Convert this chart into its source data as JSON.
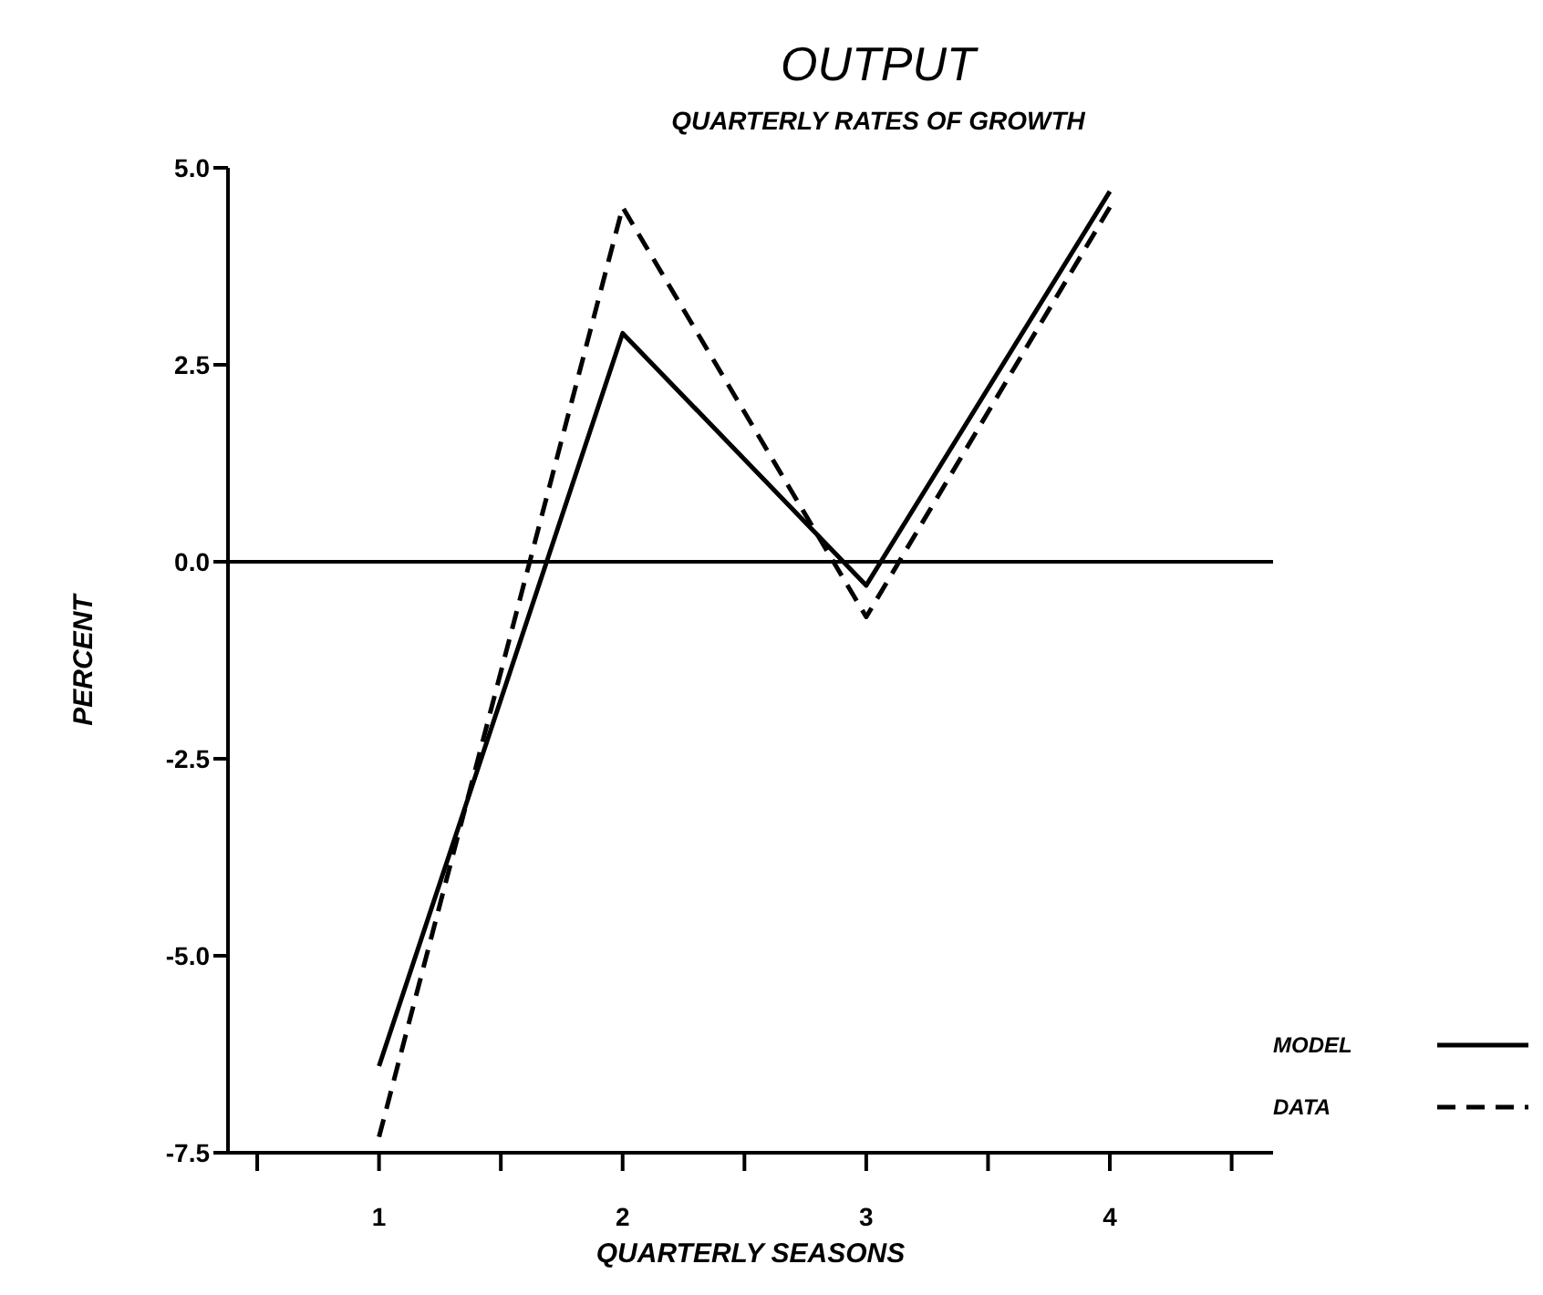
{
  "chart_data": {
    "type": "line",
    "title": "OUTPUT",
    "subtitle": "QUARTERLY RATES OF GROWTH",
    "xlabel": "QUARTERLY SEASONS",
    "ylabel": "PERCENT",
    "x": [
      1,
      2,
      3,
      4
    ],
    "series": [
      {
        "name": "MODEL",
        "color": "#000000",
        "line_style": "solid",
        "values": [
          -6.4,
          2.9,
          -0.3,
          4.7
        ]
      },
      {
        "name": "DATA",
        "color": "#000000",
        "line_style": "dashed",
        "values": [
          -7.3,
          4.5,
          -0.7,
          4.5
        ]
      }
    ],
    "xlim": [
      0.38,
      4.67
    ],
    "xticks": [
      {
        "value": 0.5,
        "label": null
      },
      1,
      {
        "value": 1.5,
        "label": null
      },
      2,
      {
        "value": 2.5,
        "label": null
      },
      3,
      {
        "value": 3.5,
        "label": null
      },
      4,
      {
        "value": 4.5,
        "label": null
      }
    ],
    "ylim": [
      -7.5,
      5.0
    ],
    "yticks": [
      {
        "value": -7.5,
        "label": "-7.5"
      },
      {
        "value": -5,
        "label": "-5.0"
      },
      {
        "value": -2.5,
        "label": "-2.5"
      },
      {
        "value": 0,
        "label": "0.0"
      },
      {
        "value": 2.5,
        "label": "2.5"
      },
      {
        "value": 5,
        "label": "5.0"
      }
    ],
    "ref_lines": [
      {
        "axis": "y",
        "value": 0,
        "color": "#000000"
      }
    ],
    "marker": "none",
    "grid": false,
    "legend": "bottom right"
  }
}
